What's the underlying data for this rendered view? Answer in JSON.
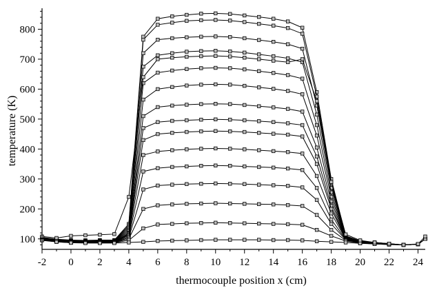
{
  "chart_data": {
    "type": "line",
    "title": "",
    "xlabel": "thermocouple position x (cm)",
    "ylabel": "temperature (K)",
    "xlim": [
      -2,
      24.5
    ],
    "ylim": [
      65,
      870
    ],
    "xticks": [
      -2,
      0,
      2,
      4,
      6,
      8,
      10,
      12,
      14,
      16,
      18,
      20,
      22,
      24
    ],
    "yticks": [
      100,
      200,
      300,
      400,
      500,
      600,
      700,
      800
    ],
    "x": [
      -2,
      -1,
      0,
      1,
      2,
      3,
      4,
      5,
      6,
      7,
      8,
      9,
      10,
      11,
      12,
      13,
      14,
      15,
      16,
      17,
      18,
      19,
      20,
      21,
      22,
      23,
      24,
      24.5
    ],
    "grid": false,
    "series": [
      {
        "values": [
          105,
          99,
          96,
          95,
          96,
          96,
          150,
          775,
          835,
          843,
          848,
          852,
          853,
          851,
          846,
          841,
          835,
          826,
          805,
          590,
          300,
          110,
          93,
          88,
          84,
          80,
          82,
          100
        ]
      },
      {
        "values": [
          104,
          98,
          95,
          95,
          95,
          95,
          145,
          765,
          815,
          822,
          828,
          830,
          831,
          829,
          824,
          818,
          812,
          804,
          785,
          575,
          290,
          108,
          92,
          88,
          84,
          80,
          82,
          100
        ]
      },
      {
        "values": [
          103,
          97,
          94,
          94,
          94,
          94,
          140,
          720,
          765,
          770,
          773,
          775,
          776,
          774,
          770,
          764,
          758,
          750,
          735,
          545,
          280,
          106,
          91,
          87,
          83,
          80,
          82,
          100
        ]
      },
      {
        "values": [
          102,
          96,
          93,
          93,
          93,
          93,
          135,
          675,
          713,
          720,
          725,
          727,
          728,
          726,
          722,
          716,
          710,
          703,
          690,
          515,
          270,
          105,
          91,
          87,
          83,
          80,
          82,
          100
        ]
      },
      {
        "values": [
          101,
          95,
          92,
          92,
          92,
          92,
          130,
          620,
          655,
          662,
          667,
          670,
          671,
          670,
          666,
          660,
          654,
          647,
          635,
          480,
          255,
          104,
          90,
          86,
          83,
          80,
          82,
          100
        ]
      },
      {
        "values": [
          100,
          94,
          91,
          91,
          91,
          91,
          125,
          565,
          600,
          607,
          612,
          615,
          616,
          615,
          611,
          606,
          601,
          594,
          583,
          445,
          240,
          103,
          90,
          86,
          83,
          80,
          82,
          100
        ]
      },
      {
        "values": [
          100,
          94,
          91,
          90,
          90,
          90,
          120,
          510,
          540,
          545,
          548,
          550,
          551,
          550,
          547,
          543,
          539,
          534,
          525,
          405,
          225,
          102,
          89,
          86,
          82,
          80,
          82,
          100
        ]
      },
      {
        "values": [
          99,
          93,
          90,
          90,
          90,
          90,
          118,
          470,
          490,
          494,
          496,
          498,
          499,
          498,
          496,
          493,
          490,
          486,
          480,
          375,
          210,
          101,
          89,
          85,
          82,
          80,
          82,
          100
        ]
      },
      {
        "values": [
          99,
          93,
          90,
          89,
          89,
          89,
          115,
          430,
          450,
          454,
          457,
          459,
          460,
          459,
          457,
          454,
          451,
          448,
          442,
          350,
          200,
          100,
          88,
          85,
          82,
          80,
          82,
          100
        ]
      },
      {
        "values": [
          98,
          92,
          89,
          89,
          89,
          89,
          112,
          380,
          392,
          396,
          399,
          401,
          402,
          401,
          399,
          396,
          393,
          390,
          385,
          310,
          185,
          99,
          88,
          85,
          82,
          80,
          82,
          100
        ]
      },
      {
        "values": [
          98,
          92,
          89,
          88,
          88,
          88,
          108,
          325,
          336,
          340,
          342,
          344,
          345,
          344,
          342,
          340,
          338,
          335,
          330,
          270,
          165,
          98,
          88,
          84,
          82,
          80,
          82,
          100
        ]
      },
      {
        "values": [
          97,
          91,
          88,
          88,
          88,
          88,
          104,
          265,
          278,
          281,
          283,
          284,
          285,
          284,
          283,
          281,
          279,
          277,
          272,
          230,
          150,
          97,
          87,
          84,
          82,
          80,
          82,
          100
        ]
      },
      {
        "values": [
          97,
          91,
          88,
          87,
          87,
          87,
          100,
          200,
          212,
          215,
          217,
          218,
          219,
          218,
          217,
          216,
          215,
          213,
          210,
          180,
          130,
          95,
          87,
          84,
          82,
          80,
          82,
          100
        ]
      },
      {
        "values": [
          96,
          90,
          87,
          87,
          87,
          87,
          95,
          135,
          148,
          150,
          152,
          153,
          154,
          153,
          152,
          151,
          150,
          149,
          147,
          130,
          110,
          93,
          86,
          83,
          81,
          80,
          82,
          100
        ]
      },
      {
        "values": [
          95,
          90,
          87,
          86,
          86,
          86,
          88,
          90,
          93,
          94,
          95,
          96,
          97,
          97,
          97,
          97,
          96,
          96,
          95,
          92,
          90,
          88,
          85,
          83,
          81,
          80,
          82,
          100
        ]
      },
      {
        "values": [
          108,
          103,
          110,
          112,
          114,
          116,
          240,
          640,
          700,
          705,
          708,
          710,
          711,
          709,
          705,
          700,
          695,
          690,
          700,
          560,
          290,
          115,
          95,
          88,
          84,
          80,
          83,
          108
        ]
      }
    ]
  }
}
